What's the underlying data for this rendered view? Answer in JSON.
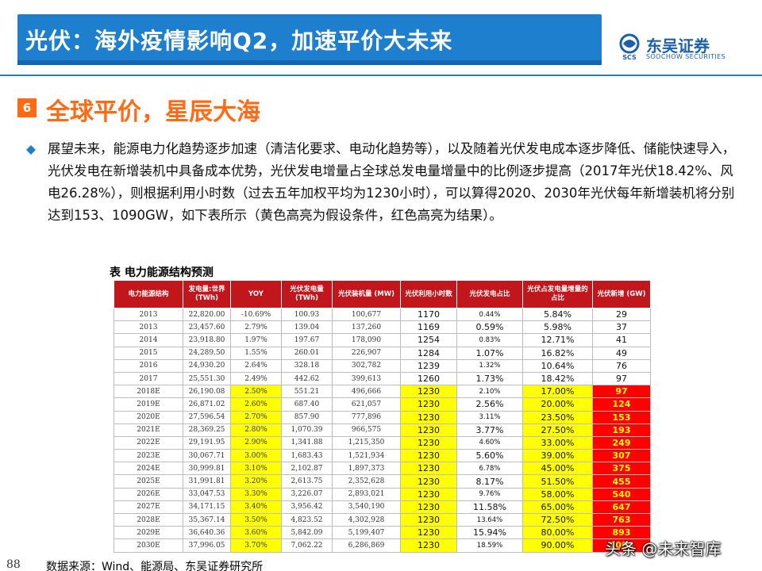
{
  "header": {
    "title": "光伏：海外疫情影响Q2，加速平价大未来",
    "logo_name": "东吴证券",
    "logo_en": "SOOCHOW SECURITIES",
    "logo_mark_text": "SCS"
  },
  "section": {
    "number": "6",
    "title": "全球平价，星辰大海"
  },
  "body_text": "展望未来，能源电力化趋势逐步加速（清洁化要求、电动化趋势等），以及随着光伏发电成本逐步降低、储能快速导入，光伏发电在新增装机中具备成本优势，光伏发电增量占全球总发电量增量中的比例逐步提高（2017年光伏18.42%、风电26.28%），则根据利用小时数（过去五年加权平均为1230小时），可以算得2020、2030年光伏每年新增装机将分别达到153、1090GW，如下表所示（黄色高亮为假设条件，红色高亮为结果）。",
  "table": {
    "title": "表 电力能源结构预测",
    "headers": [
      "电力能源结构",
      "发电量:世界 (TWh)",
      "YOY",
      "光伏发电量 (TWh)",
      "光伏装机量 (MW)",
      "光伏利用小时数",
      "光伏发电占比",
      "光伏占发电量增量的占比",
      "光伏新增 (GW)"
    ],
    "rows": [
      [
        "2013",
        "22,820.00",
        "-10.69%",
        "100.93",
        "100,677",
        "1170",
        "0.44%",
        "5.84%",
        "29"
      ],
      [
        "2013",
        "23,457.60",
        "2.79%",
        "139.04",
        "137,260",
        "1169",
        "0.59%",
        "5.98%",
        "37"
      ],
      [
        "2014",
        "23,918.80",
        "1.97%",
        "197.67",
        "178,090",
        "1254",
        "0.83%",
        "12.71%",
        "41"
      ],
      [
        "2015",
        "24,289.50",
        "1.55%",
        "260.01",
        "226,907",
        "1284",
        "1.07%",
        "16.82%",
        "49"
      ],
      [
        "2016",
        "24,930.20",
        "2.64%",
        "328.18",
        "302,782",
        "1239",
        "1.32%",
        "10.64%",
        "76"
      ],
      [
        "2017",
        "25,551.30",
        "2.49%",
        "442.62",
        "399,613",
        "1260",
        "1.73%",
        "18.42%",
        "97"
      ],
      [
        "2018E",
        "26,190.08",
        "2.50%",
        "551.21",
        "496,666",
        "1230",
        "2.10%",
        "17.00%",
        "97"
      ],
      [
        "2019E",
        "26,871.02",
        "2.60%",
        "687.40",
        "621,057",
        "1230",
        "2.56%",
        "20.00%",
        "124"
      ],
      [
        "2020E",
        "27,596.54",
        "2.70%",
        "857.90",
        "777,896",
        "1230",
        "3.11%",
        "23.50%",
        "153"
      ],
      [
        "2021E",
        "28,369.25",
        "2.80%",
        "1,070.39",
        "966,575",
        "1230",
        "3.77%",
        "27.50%",
        "193"
      ],
      [
        "2022E",
        "29,191.95",
        "2.90%",
        "1,341.88",
        "1,215,350",
        "1230",
        "4.60%",
        "33.00%",
        "249"
      ],
      [
        "2023E",
        "30,067.71",
        "3.00%",
        "1,683.43",
        "1,521,934",
        "1230",
        "5.60%",
        "39.00%",
        "307"
      ],
      [
        "2024E",
        "30,999.81",
        "3.10%",
        "2,102.87",
        "1,897,373",
        "1230",
        "6.78%",
        "45.00%",
        "375"
      ],
      [
        "2025E",
        "31,991.81",
        "3.20%",
        "2,613.75",
        "2,352,628",
        "1230",
        "8.17%",
        "51.50%",
        "455"
      ],
      [
        "2026E",
        "33,047.53",
        "3.30%",
        "3,226.07",
        "2,893,021",
        "1230",
        "9.76%",
        "58.00%",
        "540"
      ],
      [
        "2027E",
        "34,171.15",
        "3.40%",
        "3,956.42",
        "3,540,190",
        "1230",
        "11.58%",
        "65.00%",
        "647"
      ],
      [
        "2028E",
        "35,367.14",
        "3.50%",
        "4,823.52",
        "4,302,928",
        "1230",
        "13.64%",
        "72.50%",
        "763"
      ],
      [
        "2029E",
        "36,640.36",
        "3.60%",
        "5,842.09",
        "5,199,407",
        "1230",
        "15.94%",
        "80.00%",
        "893"
      ],
      [
        "2030E",
        "37,996.05",
        "3.70%",
        "7,062.22",
        "6,286,869",
        "1230",
        "18.59%",
        "90.00%",
        "1090"
      ]
    ]
  },
  "footer": {
    "page_number": "88",
    "source": "数据来源：Wind、能源局、东吴证券研究所",
    "watermark": "头条 @未来智库"
  },
  "colors": {
    "title_bar": "#1e7fcf",
    "accent_orange": "#ff6a14",
    "table_header": "#c0161c",
    "highlight_assumption": "#ffff00",
    "highlight_result": "#ff0000"
  }
}
